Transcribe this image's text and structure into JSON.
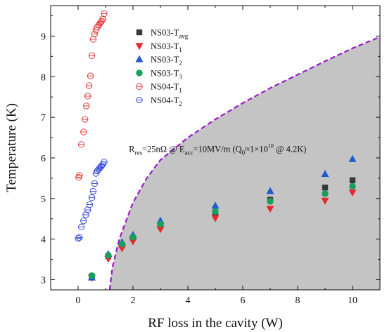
{
  "chart_data": {
    "type": "scatter",
    "xlabel": "RF loss in the cavity (W)",
    "ylabel": "Temperature (K)",
    "xlim": [
      -1,
      11
    ],
    "ylim": [
      2.75,
      9.75
    ],
    "xticks": [
      0,
      2,
      4,
      6,
      8,
      10
    ],
    "yticks": [
      3,
      4,
      5,
      6,
      7,
      8,
      9
    ],
    "grid": false,
    "legend_position": "top-center",
    "shaded_region": {
      "description": "gray region below dashed purple boundary",
      "color": "#c4c4c4",
      "boundary_color": "#9b18c8",
      "boundary": [
        {
          "x": 1.15,
          "y": 2.75
        },
        {
          "x": 1.25,
          "y": 3.3
        },
        {
          "x": 1.5,
          "y": 4.0
        },
        {
          "x": 2.0,
          "y": 4.9
        },
        {
          "x": 2.5,
          "y": 5.5
        },
        {
          "x": 3.0,
          "y": 5.95
        },
        {
          "x": 4.0,
          "y": 6.5
        },
        {
          "x": 5.0,
          "y": 6.95
        },
        {
          "x": 6.0,
          "y": 7.35
        },
        {
          "x": 7.0,
          "y": 7.72
        },
        {
          "x": 8.0,
          "y": 8.05
        },
        {
          "x": 9.0,
          "y": 8.38
        },
        {
          "x": 10.0,
          "y": 8.7
        },
        {
          "x": 11.0,
          "y": 8.98
        }
      ]
    },
    "annotation": {
      "parts": [
        {
          "t": "R",
          "s": "n"
        },
        {
          "t": "res",
          "s": "sub"
        },
        {
          "t": "=25nΩ @ E",
          "s": "n"
        },
        {
          "t": "acc",
          "s": "sub"
        },
        {
          "t": "=10MV/m (Q",
          "s": "n"
        },
        {
          "t": "0",
          "s": "sub"
        },
        {
          "t": "≈1×10",
          "s": "n"
        },
        {
          "t": "10",
          "s": "sup"
        },
        {
          "t": " @ 4.2K)",
          "s": "n"
        }
      ],
      "x": 1.85,
      "y": 6.15
    },
    "series": [
      {
        "name": "NS03-T_avg",
        "legend_parts": [
          {
            "t": "NS03-T",
            "s": "n"
          },
          {
            "t": "avg",
            "s": "sub"
          }
        ],
        "marker": "square",
        "color": "#3a3a3a",
        "filled": true,
        "x": [
          0.5,
          1.1,
          1.6,
          2.0,
          3.0,
          5.0,
          7.0,
          9.0,
          10.0
        ],
        "y": [
          3.08,
          3.58,
          3.85,
          4.03,
          4.33,
          4.65,
          4.97,
          5.27,
          5.45
        ]
      },
      {
        "name": "NS03-T1",
        "legend_parts": [
          {
            "t": "NS03-T",
            "s": "n"
          },
          {
            "t": "1",
            "s": "sub"
          }
        ],
        "marker": "triangle-down",
        "color": "#e8272a",
        "filled": true,
        "x": [
          0.5,
          1.1,
          1.6,
          2.0,
          3.0,
          5.0,
          7.0,
          9.0,
          10.0
        ],
        "y": [
          3.05,
          3.52,
          3.78,
          3.95,
          4.25,
          4.52,
          4.75,
          4.95,
          5.15
        ]
      },
      {
        "name": "NS03-T2",
        "legend_parts": [
          {
            "t": "NS03-T",
            "s": "n"
          },
          {
            "t": "2",
            "s": "sub"
          }
        ],
        "marker": "triangle-up",
        "color": "#1f5bd0",
        "filled": true,
        "x": [
          0.5,
          1.1,
          1.6,
          2.0,
          3.0,
          5.0,
          7.0,
          9.0,
          10.0
        ],
        "y": [
          3.05,
          3.63,
          3.92,
          4.1,
          4.45,
          4.82,
          5.18,
          5.6,
          5.97
        ]
      },
      {
        "name": "NS03-T3",
        "legend_parts": [
          {
            "t": "NS03-T",
            "s": "n"
          },
          {
            "t": "3",
            "s": "sub"
          }
        ],
        "marker": "circle",
        "color": "#17a05a",
        "filled": true,
        "x": [
          0.5,
          1.1,
          1.6,
          2.0,
          3.0,
          5.0,
          7.0,
          9.0,
          10.0
        ],
        "y": [
          3.1,
          3.6,
          3.88,
          4.05,
          4.37,
          4.68,
          4.93,
          5.12,
          5.3
        ]
      },
      {
        "name": "NS04-T1",
        "legend_parts": [
          {
            "t": "NS04-T",
            "s": "n"
          },
          {
            "t": "1",
            "s": "sub"
          }
        ],
        "marker": "circle-slash",
        "color": "#e8272a",
        "filled": false,
        "x": [
          0.02,
          0.05,
          0.12,
          0.2,
          0.25,
          0.3,
          0.35,
          0.4,
          0.45,
          0.5,
          0.55,
          0.6,
          0.65,
          0.7,
          0.75,
          0.8,
          0.85,
          0.9,
          0.95
        ],
        "y": [
          5.52,
          5.57,
          6.33,
          6.64,
          6.95,
          7.28,
          7.52,
          7.78,
          8.02,
          8.52,
          8.92,
          9.05,
          9.15,
          9.22,
          9.27,
          9.32,
          9.36,
          9.42,
          9.55
        ]
      },
      {
        "name": "NS04-T2",
        "legend_parts": [
          {
            "t": "NS04-T",
            "s": "n"
          },
          {
            "t": "2",
            "s": "sub"
          }
        ],
        "marker": "circle-slash",
        "color": "#2a3fd6",
        "filled": false,
        "x": [
          0.0,
          0.05,
          0.12,
          0.2,
          0.28,
          0.35,
          0.42,
          0.5,
          0.55,
          0.6,
          0.65,
          0.7,
          0.75,
          0.8,
          0.85,
          0.9,
          0.95
        ],
        "y": [
          4.02,
          4.04,
          4.3,
          4.45,
          4.6,
          4.72,
          4.85,
          5.02,
          5.18,
          5.37,
          5.62,
          5.68,
          5.72,
          5.76,
          5.8,
          5.84,
          5.9
        ]
      }
    ]
  }
}
